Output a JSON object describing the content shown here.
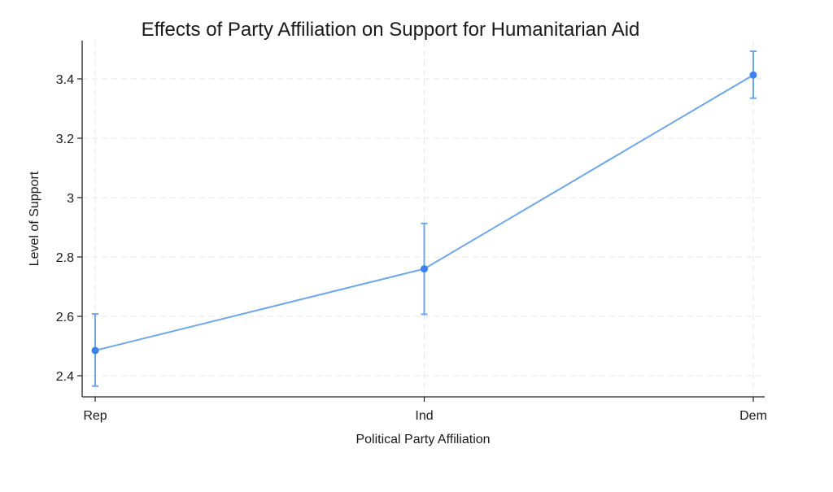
{
  "chart_data": {
    "type": "line",
    "title": "Effects of Party Affiliation on Support for Humanitarian Aid",
    "xlabel": "Political Party Affiliation",
    "ylabel": "Level of Support",
    "categories": [
      "Rep",
      "Ind",
      "Dem"
    ],
    "values": [
      2.485,
      2.76,
      3.413
    ],
    "ci_lower": [
      2.365,
      2.607,
      3.335
    ],
    "ci_upper": [
      2.608,
      2.913,
      3.493
    ],
    "y_ticks": [
      "2.4",
      "2.6",
      "2.8",
      "3",
      "3.2",
      "3.4"
    ],
    "ylim": [
      2.33,
      3.55
    ],
    "grid": true,
    "colors": {
      "series": "#6ea6e8",
      "marker": "#3b82f0"
    }
  }
}
